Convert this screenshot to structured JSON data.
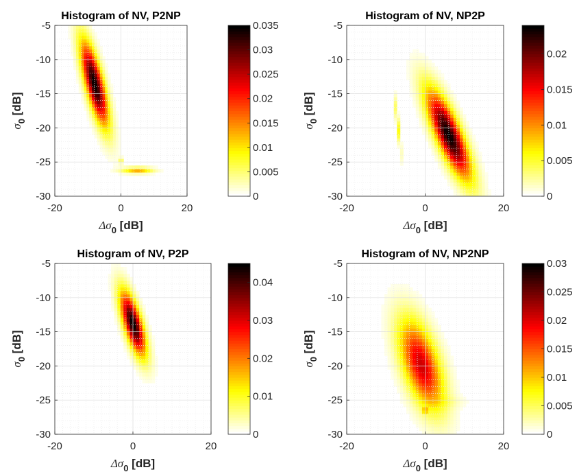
{
  "chart_data": [
    {
      "type": "heatmap",
      "title": "Histogram of NV, P2NP",
      "xlabel_main": "Δσ",
      "xlabel_sub": "0",
      "xlabel_unit": "[dB]",
      "ylabel_main": "σ",
      "ylabel_sub": "0",
      "ylabel_unit": "[dB]",
      "xlim": [
        -20,
        20
      ],
      "ylim": [
        -30,
        -5
      ],
      "xticks": [
        -20,
        0,
        20
      ],
      "yticks": [
        -5,
        -10,
        -15,
        -20,
        -25,
        -30
      ],
      "grid": true,
      "colormap": "hot-reversed",
      "colorbar_range": [
        0,
        0.035
      ],
      "colorbar_ticks": [
        "0",
        "0.005",
        "0.01",
        "0.015",
        "0.02",
        "0.025",
        "0.03",
        "0.035"
      ],
      "blobs": [
        {
          "cx": -8,
          "cy": -13.5,
          "sx": 2.8,
          "sy": 4.2,
          "rho": -0.75,
          "peak": 0.035
        },
        {
          "cx": 5,
          "cy": -26.2,
          "sx": 3.2,
          "sy": 0.3,
          "rho": 0,
          "peak": 0.013
        },
        {
          "cx": 0,
          "cy": -24.8,
          "sx": 0.5,
          "sy": 0.3,
          "rho": 0,
          "peak": 0.006
        }
      ]
    },
    {
      "type": "heatmap",
      "title": "Histogram of NV, NP2P",
      "xlabel_main": "Δσ",
      "xlabel_sub": "0",
      "xlabel_unit": "[dB]",
      "ylabel_main": "σ",
      "ylabel_sub": "0",
      "ylabel_unit": "[dB]",
      "xlim": [
        -20,
        20
      ],
      "ylim": [
        -30,
        -5
      ],
      "xticks": [
        -20,
        0,
        20
      ],
      "yticks": [
        -5,
        -10,
        -15,
        -20,
        -25,
        -30
      ],
      "grid": true,
      "colormap": "hot-reversed",
      "colorbar_range": [
        0,
        0.024
      ],
      "colorbar_ticks": [
        "0",
        "0.005",
        "0.01",
        "0.015",
        "0.02"
      ],
      "blobs": [
        {
          "cx": 6,
          "cy": -21,
          "sx": 3.8,
          "sy": 4.4,
          "rho": -0.8,
          "peak": 0.024
        },
        {
          "cx": -7,
          "cy": -19.5,
          "sx": 0.6,
          "sy": 2.8,
          "rho": -0.9,
          "peak": 0.006
        }
      ]
    },
    {
      "type": "heatmap",
      "title": "Histogram of NV, P2P",
      "xlabel_main": "Δσ",
      "xlabel_sub": "0",
      "xlabel_unit": "[dB]",
      "ylabel_main": "σ",
      "ylabel_sub": "0",
      "ylabel_unit": "[dB]",
      "xlim": [
        -20,
        20
      ],
      "ylim": [
        -30,
        -5
      ],
      "xticks": [
        -20,
        0,
        20
      ],
      "yticks": [
        -5,
        -10,
        -15,
        -20,
        -25,
        -30
      ],
      "grid": true,
      "colormap": "hot-reversed",
      "colorbar_range": [
        0,
        0.045
      ],
      "colorbar_ticks": [
        "0",
        "0.01",
        "0.02",
        "0.03",
        "0.04"
      ],
      "blobs": [
        {
          "cx": 0,
          "cy": -13.8,
          "sx": 2.2,
          "sy": 3.2,
          "rho": -0.7,
          "peak": 0.045
        }
      ]
    },
    {
      "type": "heatmap",
      "title": "Histogram of NV, NP2NP",
      "xlabel_main": "Δσ",
      "xlabel_sub": "0",
      "xlabel_unit": "[dB]",
      "ylabel_main": "σ",
      "ylabel_sub": "0",
      "ylabel_unit": "[dB]",
      "xlim": [
        -20,
        20
      ],
      "ylim": [
        -30,
        -5
      ],
      "xticks": [
        -20,
        0,
        20
      ],
      "yticks": [
        -5,
        -10,
        -15,
        -20,
        -25,
        -30
      ],
      "grid": true,
      "colormap": "hot-reversed",
      "colorbar_range": [
        0,
        0.03
      ],
      "colorbar_ticks": [
        "0",
        "0.005",
        "0.01",
        "0.015",
        "0.02",
        "0.025",
        "0.03"
      ],
      "blobs": [
        {
          "cx": -1,
          "cy": -19.8,
          "sx": 3.8,
          "sy": 4.5,
          "rho": -0.55,
          "peak": 0.021
        },
        {
          "cx": 6,
          "cy": -25.2,
          "sx": 3.5,
          "sy": 0.6,
          "rho": 0,
          "peak": 0.0012
        },
        {
          "cx": 0,
          "cy": -26.5,
          "sx": 0.25,
          "sy": 0.2,
          "rho": 0,
          "peak": 0.03
        }
      ]
    }
  ]
}
